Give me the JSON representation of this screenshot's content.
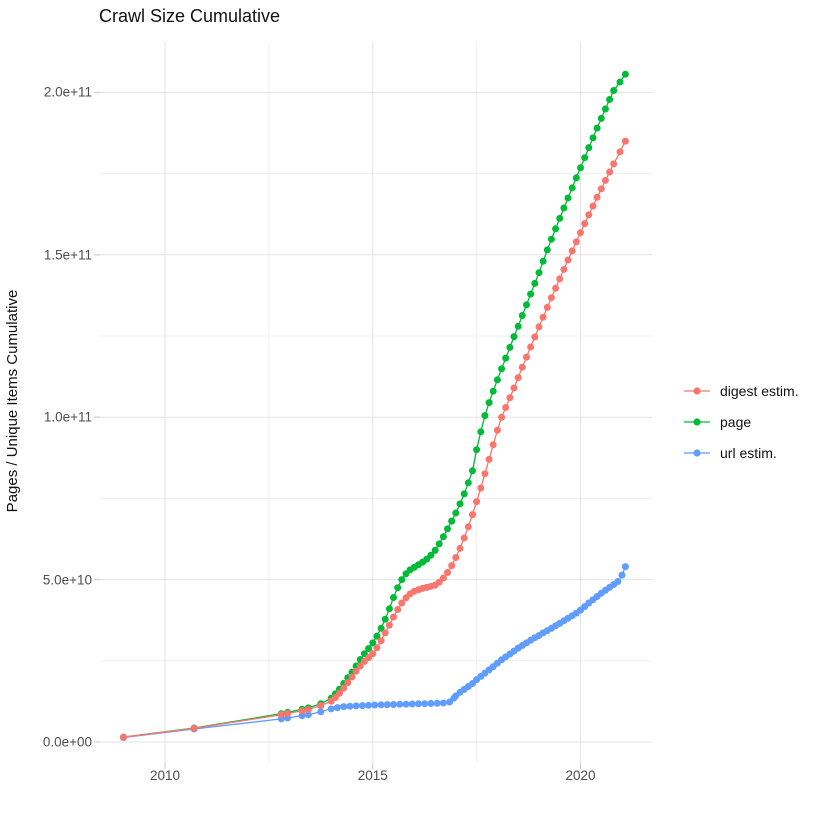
{
  "title": "Crawl Size Cumulative",
  "axes": {
    "x": {
      "ticks": [
        {
          "value": 2010,
          "label": "2010"
        },
        {
          "value": 2015,
          "label": "2015"
        },
        {
          "value": 2020,
          "label": "2020"
        }
      ],
      "minor": [
        2012.5,
        2017.5
      ]
    },
    "y": {
      "title": "Pages / Unique Items Cumulative",
      "ticks": [
        {
          "value": 0,
          "label": "0.0e+00"
        },
        {
          "value": 50,
          "label": "5.0e+10"
        },
        {
          "value": 100,
          "label": "1.0e+11"
        },
        {
          "value": 150,
          "label": "1.5e+11"
        },
        {
          "value": 200,
          "label": "2.0e+11"
        }
      ],
      "minor": [
        25,
        75,
        125,
        175
      ]
    }
  },
  "colors": {
    "grid_major": "#e3e3e3",
    "grid_minor": "#efefef",
    "tick": "#c8c8c8",
    "text_primary": "#121212",
    "text_secondary": "#4d4d4d"
  },
  "legend": {
    "items": [
      {
        "label": "digest estim.",
        "color": "#F8766D"
      },
      {
        "label": "page",
        "color": "#00BA38"
      },
      {
        "label": "url estim.",
        "color": "#619CFF"
      }
    ]
  },
  "chart_data": {
    "type": "scatter",
    "title": "Crawl Size Cumulative",
    "xlabel": "",
    "ylabel": "Pages / Unique Items Cumulative",
    "x_unit": "year",
    "value_scale": 1000000000,
    "value_unit": "pages / unique items (values below are in billions, i.e. ×1e9)",
    "xlim": [
      2008.4,
      2021.7
    ],
    "ylim_billions": [
      -6,
      216
    ],
    "grid": true,
    "legend_position": "right",
    "draw_order": [
      "page",
      "url estim.",
      "digest estim."
    ],
    "series": [
      {
        "name": "digest estim.",
        "color": "#F8766D",
        "points": [
          [
            2009.0,
            1.5
          ],
          [
            2010.7,
            4.2
          ],
          [
            2012.8,
            8.4
          ],
          [
            2012.95,
            8.8
          ],
          [
            2013.3,
            9.6
          ],
          [
            2013.45,
            10.0
          ],
          [
            2013.75,
            11.2
          ],
          [
            2014.0,
            12.6
          ],
          [
            2014.1,
            13.7
          ],
          [
            2014.2,
            15.0
          ],
          [
            2014.3,
            16.6
          ],
          [
            2014.4,
            18.3
          ],
          [
            2014.5,
            20.0
          ],
          [
            2014.6,
            21.8
          ],
          [
            2014.7,
            23.4
          ],
          [
            2014.8,
            24.8
          ],
          [
            2014.9,
            26.0
          ],
          [
            2015.0,
            27.2
          ],
          [
            2015.1,
            29.0
          ],
          [
            2015.2,
            31.2
          ],
          [
            2015.3,
            33.6
          ],
          [
            2015.4,
            36.0
          ],
          [
            2015.5,
            38.5
          ],
          [
            2015.6,
            40.8
          ],
          [
            2015.7,
            42.8
          ],
          [
            2015.8,
            44.4
          ],
          [
            2015.9,
            45.6
          ],
          [
            2016.0,
            46.4
          ],
          [
            2016.1,
            46.9
          ],
          [
            2016.2,
            47.3
          ],
          [
            2016.3,
            47.6
          ],
          [
            2016.4,
            47.9
          ],
          [
            2016.5,
            48.3
          ],
          [
            2016.6,
            49.2
          ],
          [
            2016.7,
            50.5
          ],
          [
            2016.8,
            52.2
          ],
          [
            2016.9,
            54.3
          ],
          [
            2017.0,
            56.8
          ],
          [
            2017.1,
            59.6
          ],
          [
            2017.2,
            62.8
          ],
          [
            2017.3,
            66.3
          ],
          [
            2017.4,
            70.0
          ],
          [
            2017.5,
            74.0
          ],
          [
            2017.6,
            78.2
          ],
          [
            2017.7,
            82.6
          ],
          [
            2017.8,
            87.0
          ],
          [
            2017.9,
            91.5
          ],
          [
            2018.0,
            96.0
          ],
          [
            2018.1,
            100.0
          ],
          [
            2018.2,
            103.0
          ],
          [
            2018.3,
            106.0
          ],
          [
            2018.4,
            109.0
          ],
          [
            2018.5,
            112.2
          ],
          [
            2018.6,
            115.4
          ],
          [
            2018.7,
            118.5
          ],
          [
            2018.8,
            121.6
          ],
          [
            2018.9,
            124.7
          ],
          [
            2019.0,
            127.8
          ],
          [
            2019.1,
            130.8
          ],
          [
            2019.2,
            133.8
          ],
          [
            2019.3,
            136.8
          ],
          [
            2019.4,
            139.7
          ],
          [
            2019.5,
            142.6
          ],
          [
            2019.6,
            145.5
          ],
          [
            2019.7,
            148.4
          ],
          [
            2019.8,
            151.2
          ],
          [
            2019.9,
            154.0
          ],
          [
            2020.0,
            156.8
          ],
          [
            2020.1,
            159.6
          ],
          [
            2020.2,
            162.3
          ],
          [
            2020.3,
            165.0
          ],
          [
            2020.4,
            167.7
          ],
          [
            2020.5,
            170.3
          ],
          [
            2020.6,
            172.9
          ],
          [
            2020.7,
            175.5
          ],
          [
            2020.8,
            178.0
          ],
          [
            2020.95,
            181.7
          ],
          [
            2021.08,
            185.0
          ]
        ]
      },
      {
        "name": "page",
        "color": "#00BA38",
        "points": [
          [
            2009.0,
            1.5
          ],
          [
            2010.7,
            4.3
          ],
          [
            2012.8,
            8.7
          ],
          [
            2012.95,
            9.1
          ],
          [
            2013.3,
            10.1
          ],
          [
            2013.45,
            10.5
          ],
          [
            2013.75,
            11.8
          ],
          [
            2014.0,
            13.5
          ],
          [
            2014.1,
            14.8
          ],
          [
            2014.2,
            16.3
          ],
          [
            2014.3,
            18.0
          ],
          [
            2014.4,
            19.8
          ],
          [
            2014.5,
            21.5
          ],
          [
            2014.6,
            23.4
          ],
          [
            2014.7,
            25.4
          ],
          [
            2014.8,
            27.2
          ],
          [
            2014.9,
            28.8
          ],
          [
            2015.0,
            30.5
          ],
          [
            2015.1,
            32.6
          ],
          [
            2015.2,
            35.0
          ],
          [
            2015.3,
            37.8
          ],
          [
            2015.4,
            41.0
          ],
          [
            2015.5,
            44.5
          ],
          [
            2015.6,
            47.5
          ],
          [
            2015.7,
            50.0
          ],
          [
            2015.8,
            51.8
          ],
          [
            2015.9,
            53.0
          ],
          [
            2016.0,
            53.8
          ],
          [
            2016.1,
            54.6
          ],
          [
            2016.2,
            55.4
          ],
          [
            2016.3,
            56.3
          ],
          [
            2016.4,
            57.5
          ],
          [
            2016.5,
            59.0
          ],
          [
            2016.6,
            61.0
          ],
          [
            2016.7,
            63.2
          ],
          [
            2016.8,
            65.6
          ],
          [
            2016.9,
            68.0
          ],
          [
            2017.0,
            70.5
          ],
          [
            2017.1,
            73.3
          ],
          [
            2017.2,
            76.4
          ],
          [
            2017.3,
            79.8
          ],
          [
            2017.4,
            83.5
          ],
          [
            2017.5,
            90.0
          ],
          [
            2017.6,
            95.5
          ],
          [
            2017.7,
            100.5
          ],
          [
            2017.8,
            104.5
          ],
          [
            2017.9,
            108.0
          ],
          [
            2018.0,
            111.5
          ],
          [
            2018.1,
            114.9
          ],
          [
            2018.2,
            118.2
          ],
          [
            2018.3,
            121.5
          ],
          [
            2018.4,
            124.8
          ],
          [
            2018.5,
            128.0
          ],
          [
            2018.6,
            131.3
          ],
          [
            2018.7,
            134.6
          ],
          [
            2018.8,
            137.9
          ],
          [
            2018.9,
            141.2
          ],
          [
            2019.0,
            144.5
          ],
          [
            2019.1,
            148.0
          ],
          [
            2019.2,
            151.5
          ],
          [
            2019.3,
            154.8
          ],
          [
            2019.4,
            158.0
          ],
          [
            2019.5,
            161.2
          ],
          [
            2019.6,
            164.4
          ],
          [
            2019.7,
            167.5
          ],
          [
            2019.8,
            170.6
          ],
          [
            2019.9,
            173.7
          ],
          [
            2020.0,
            176.8
          ],
          [
            2020.1,
            179.9
          ],
          [
            2020.2,
            183.0
          ],
          [
            2020.3,
            186.0
          ],
          [
            2020.4,
            189.0
          ],
          [
            2020.5,
            192.0
          ],
          [
            2020.6,
            194.9
          ],
          [
            2020.7,
            197.8
          ],
          [
            2020.8,
            200.6
          ],
          [
            2020.95,
            203.2
          ],
          [
            2021.08,
            205.6
          ]
        ]
      },
      {
        "name": "url estim.",
        "color": "#619CFF",
        "points": [
          [
            2009.0,
            1.4
          ],
          [
            2010.7,
            4.0
          ],
          [
            2012.8,
            7.1
          ],
          [
            2012.95,
            7.4
          ],
          [
            2013.3,
            8.1
          ],
          [
            2013.45,
            8.4
          ],
          [
            2013.75,
            9.3
          ],
          [
            2014.0,
            10.2
          ],
          [
            2014.15,
            10.6
          ],
          [
            2014.3,
            10.9
          ],
          [
            2014.45,
            11.0
          ],
          [
            2014.6,
            11.1
          ],
          [
            2014.75,
            11.2
          ],
          [
            2014.9,
            11.3
          ],
          [
            2015.05,
            11.4
          ],
          [
            2015.2,
            11.45
          ],
          [
            2015.35,
            11.5
          ],
          [
            2015.5,
            11.55
          ],
          [
            2015.65,
            11.6
          ],
          [
            2015.8,
            11.65
          ],
          [
            2015.95,
            11.7
          ],
          [
            2016.1,
            11.75
          ],
          [
            2016.25,
            11.8
          ],
          [
            2016.4,
            11.85
          ],
          [
            2016.55,
            11.9
          ],
          [
            2016.7,
            12.0
          ],
          [
            2016.85,
            12.3
          ],
          [
            2016.95,
            13.5
          ],
          [
            2017.0,
            14.2
          ],
          [
            2017.1,
            15.3
          ],
          [
            2017.2,
            16.2
          ],
          [
            2017.3,
            17.1
          ],
          [
            2017.4,
            18.0
          ],
          [
            2017.5,
            19.2
          ],
          [
            2017.6,
            20.2
          ],
          [
            2017.7,
            21.2
          ],
          [
            2017.8,
            22.2
          ],
          [
            2017.9,
            23.2
          ],
          [
            2018.0,
            24.3
          ],
          [
            2018.1,
            25.3
          ],
          [
            2018.2,
            26.2
          ],
          [
            2018.3,
            27.1
          ],
          [
            2018.4,
            28.0
          ],
          [
            2018.5,
            28.9
          ],
          [
            2018.6,
            29.7
          ],
          [
            2018.7,
            30.5
          ],
          [
            2018.8,
            31.3
          ],
          [
            2018.9,
            32.1
          ],
          [
            2019.0,
            32.8
          ],
          [
            2019.1,
            33.6
          ],
          [
            2019.2,
            34.3
          ],
          [
            2019.3,
            35.0
          ],
          [
            2019.4,
            35.8
          ],
          [
            2019.5,
            36.5
          ],
          [
            2019.6,
            37.3
          ],
          [
            2019.7,
            38.1
          ],
          [
            2019.8,
            38.9
          ],
          [
            2019.9,
            39.7
          ],
          [
            2020.0,
            40.6
          ],
          [
            2020.1,
            41.7
          ],
          [
            2020.2,
            42.8
          ],
          [
            2020.3,
            43.8
          ],
          [
            2020.4,
            44.8
          ],
          [
            2020.5,
            45.8
          ],
          [
            2020.6,
            46.7
          ],
          [
            2020.7,
            47.6
          ],
          [
            2020.8,
            48.5
          ],
          [
            2020.9,
            49.4
          ],
          [
            2021.0,
            51.4
          ],
          [
            2021.08,
            54.0
          ]
        ]
      }
    ]
  }
}
